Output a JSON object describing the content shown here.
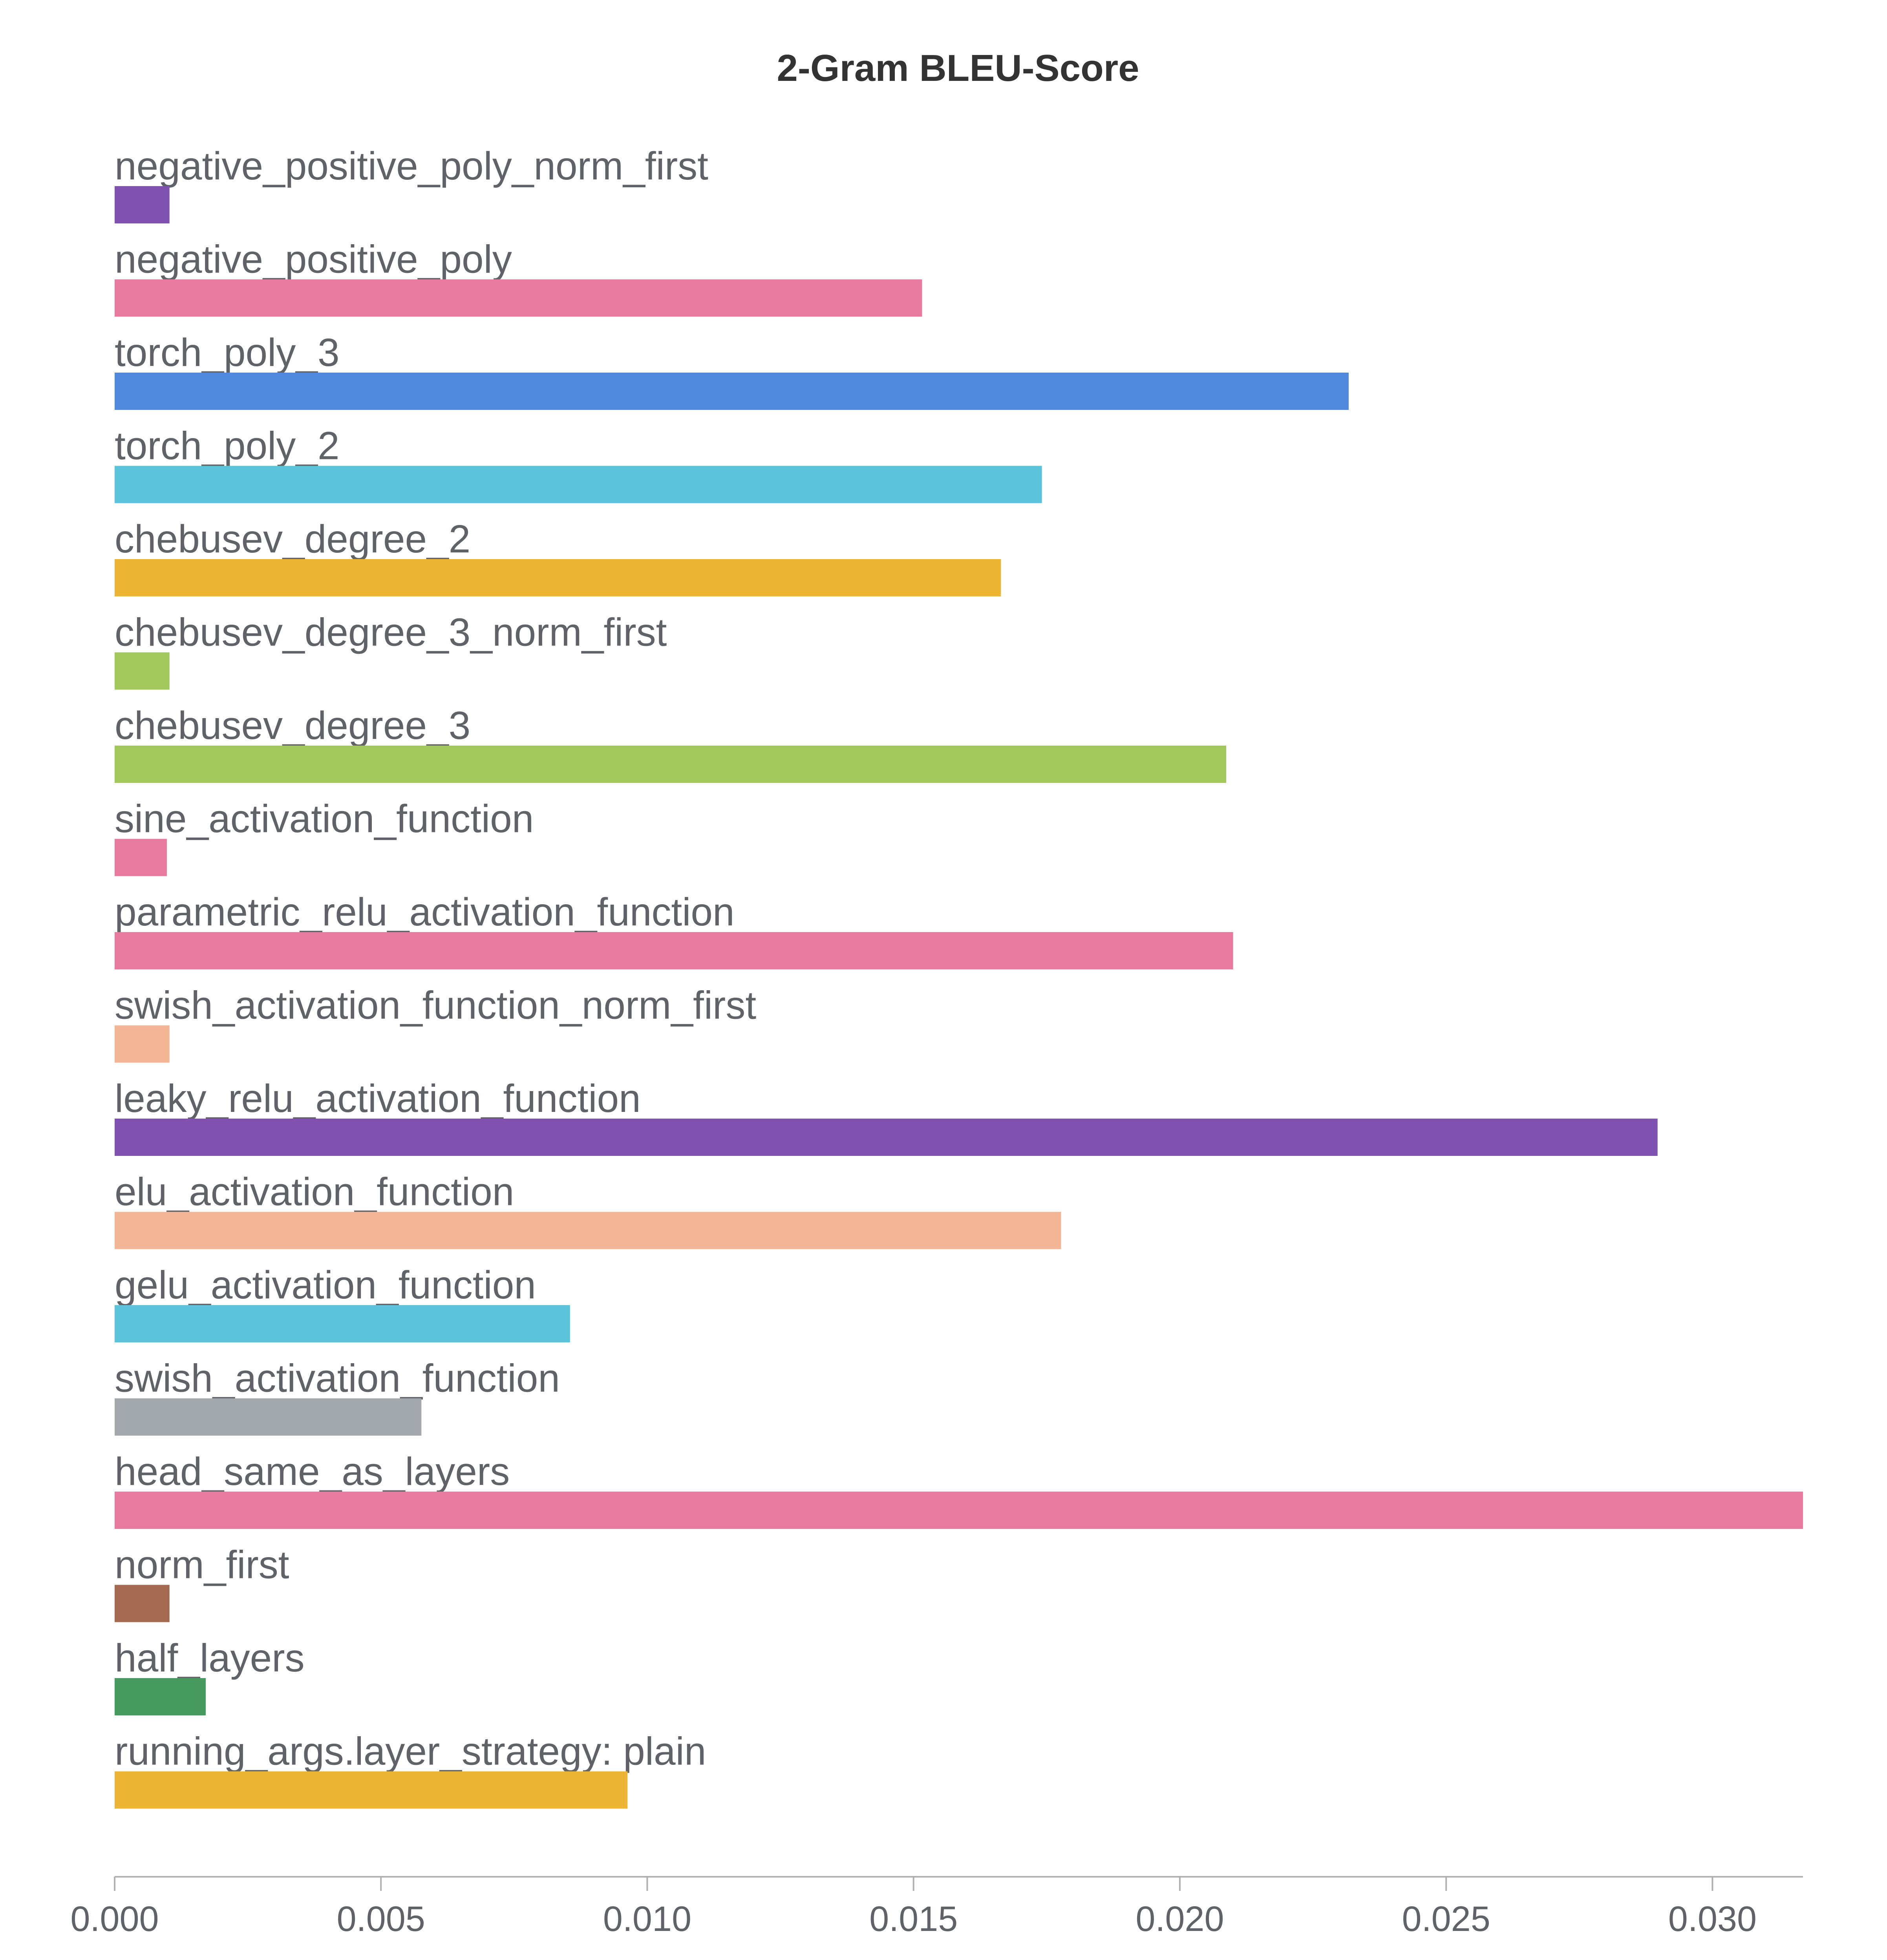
{
  "chart_data": {
    "type": "bar",
    "orientation": "horizontal",
    "title": "2-Gram BLEU-Score",
    "xlabel": "",
    "ylabel": "",
    "xlim": [
      0,
      0.0317
    ],
    "grid": false,
    "legend": "none",
    "x_ticks": [
      "0.000",
      "0.005",
      "0.010",
      "0.015",
      "0.020",
      "0.025",
      "0.030"
    ],
    "x_tick_values": [
      0,
      0.005,
      0.01,
      0.015,
      0.02,
      0.025,
      0.03
    ],
    "bars": [
      {
        "label": "negative_positive_poly_norm_first",
        "value": 0.00103,
        "color": "#7f52b2"
      },
      {
        "label": "negative_positive_poly",
        "value": 0.01516,
        "color": "#e87a9f"
      },
      {
        "label": "torch_poly_3",
        "value": 0.02317,
        "color": "#5088dc"
      },
      {
        "label": "torch_poly_2",
        "value": 0.01741,
        "color": "#5bc4da"
      },
      {
        "label": "chebusev_degree_2",
        "value": 0.01664,
        "color": "#ecb535"
      },
      {
        "label": "chebusev_degree_3_norm_first",
        "value": 0.00103,
        "color": "#a2c85b"
      },
      {
        "label": "chebusev_degree_3",
        "value": 0.02087,
        "color": "#a2c85b"
      },
      {
        "label": "sine_activation_function",
        "value": 0.00098,
        "color": "#e87a9f"
      },
      {
        "label": "parametric_relu_activation_function",
        "value": 0.021,
        "color": "#e87a9f"
      },
      {
        "label": "swish_activation_function_norm_first",
        "value": 0.00103,
        "color": "#f2b697"
      },
      {
        "label": "leaky_relu_activation_function",
        "value": 0.02897,
        "color": "#7f52b2"
      },
      {
        "label": "elu_activation_function",
        "value": 0.01777,
        "color": "#f2b697"
      },
      {
        "label": "gelu_activation_function",
        "value": 0.00855,
        "color": "#5bc4da"
      },
      {
        "label": "swish_activation_function",
        "value": 0.00576,
        "color": "#a3a8ac"
      },
      {
        "label": "head_same_as_layers",
        "value": 0.0317,
        "color": "#e87a9f"
      },
      {
        "label": "norm_first",
        "value": 0.00103,
        "color": "#a36a51"
      },
      {
        "label": "half_layers",
        "value": 0.00171,
        "color": "#469a5e"
      },
      {
        "label": "running_args.layer_strategy: plain",
        "value": 0.00963,
        "color": "#ecb535"
      }
    ]
  }
}
